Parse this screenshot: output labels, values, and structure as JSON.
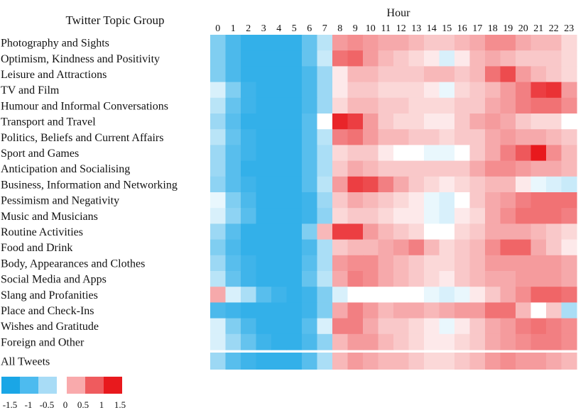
{
  "chart_data": {
    "type": "heatmap",
    "row_header": "Twitter Topic Group",
    "column_header": "Hour",
    "x": [
      "0",
      "1",
      "2",
      "3",
      "4",
      "5",
      "6",
      "7",
      "8",
      "9",
      "10",
      "11",
      "12",
      "13",
      "14",
      "15",
      "16",
      "17",
      "18",
      "19",
      "20",
      "21",
      "22",
      "23"
    ],
    "rows": [
      "Photography and Sights",
      "Optimism, Kindness and Positivity",
      "Leisure and Attractions",
      "TV and Film",
      "Humour and Informal Conversations",
      "Transport and Travel",
      "Politics, Beliefs and Current Affairs",
      "Sport and Games",
      "Anticipation and Socialising",
      "Business, Information and Networking",
      "Pessimism and Negativity",
      "Music and Musicians",
      "Routine Activities",
      "Food and Drink",
      "Body, Appearances and Clothes",
      "Social Media and Apps",
      "Slang and Profanities",
      "Place and Check-Ins",
      "Wishes and Gratitude",
      "Foreign and Other"
    ],
    "summary_row": "All Tweets",
    "values": [
      [
        -0.8,
        -1.2,
        -1.4,
        -1.4,
        -1.4,
        -1.4,
        -1.0,
        -0.4,
        0.6,
        0.7,
        0.6,
        0.5,
        0.5,
        0.4,
        0.3,
        0.3,
        0.4,
        0.5,
        0.7,
        0.7,
        0.5,
        0.4,
        0.4,
        0.2
      ],
      [
        -0.8,
        -1.2,
        -1.4,
        -1.4,
        -1.4,
        -1.4,
        -1.0,
        -0.3,
        0.9,
        1.0,
        0.6,
        0.4,
        0.3,
        0.2,
        0.1,
        -0.2,
        0.1,
        0.4,
        0.5,
        0.4,
        0.3,
        0.3,
        0.3,
        0.2
      ],
      [
        -0.8,
        -1.2,
        -1.4,
        -1.4,
        -1.4,
        -1.4,
        -1.2,
        -0.6,
        0.1,
        0.4,
        0.4,
        0.3,
        0.3,
        0.3,
        0.4,
        0.4,
        0.3,
        0.4,
        0.9,
        1.2,
        0.6,
        0.4,
        0.3,
        0.2
      ],
      [
        -0.2,
        -0.8,
        -1.3,
        -1.4,
        -1.4,
        -1.4,
        -1.2,
        -0.6,
        0.1,
        0.3,
        0.3,
        0.2,
        0.2,
        0.2,
        0.1,
        -0.1,
        0.2,
        0.3,
        0.4,
        0.6,
        0.8,
        1.3,
        1.4,
        0.6
      ],
      [
        -0.4,
        -1.0,
        -1.3,
        -1.4,
        -1.4,
        -1.4,
        -1.2,
        -0.6,
        0.2,
        0.4,
        0.4,
        0.3,
        0.3,
        0.2,
        0.2,
        0.2,
        0.3,
        0.3,
        0.5,
        0.6,
        0.8,
        0.9,
        0.9,
        0.7
      ],
      [
        -0.6,
        -1.1,
        -1.4,
        -1.4,
        -1.4,
        -1.4,
        -1.1,
        0.0,
        1.5,
        1.3,
        0.6,
        0.3,
        0.2,
        0.2,
        0.1,
        0.1,
        0.3,
        0.5,
        0.6,
        0.5,
        0.3,
        0.2,
        0.2,
        0.0
      ],
      [
        -0.4,
        -1.0,
        -1.3,
        -1.4,
        -1.4,
        -1.4,
        -1.1,
        -0.4,
        0.8,
        0.9,
        0.6,
        0.4,
        0.4,
        0.3,
        0.3,
        0.2,
        0.3,
        0.3,
        0.5,
        0.6,
        0.5,
        0.5,
        0.4,
        0.3
      ],
      [
        -0.6,
        -1.1,
        -1.3,
        -1.4,
        -1.4,
        -1.4,
        -1.1,
        -0.5,
        0.2,
        0.3,
        0.3,
        0.1,
        0.0,
        0.0,
        -0.1,
        -0.1,
        0.0,
        0.3,
        0.5,
        0.8,
        1.1,
        1.6,
        0.7,
        0.4
      ],
      [
        -0.6,
        -1.1,
        -1.4,
        -1.4,
        -1.4,
        -1.4,
        -1.1,
        -0.5,
        0.3,
        0.5,
        0.4,
        0.3,
        0.3,
        0.3,
        0.3,
        0.3,
        0.3,
        0.5,
        0.7,
        0.7,
        0.6,
        0.5,
        0.5,
        0.4
      ],
      [
        -0.7,
        -1.1,
        -1.3,
        -1.4,
        -1.4,
        -1.4,
        -1.1,
        -0.4,
        0.6,
        1.3,
        1.2,
        0.8,
        0.5,
        0.3,
        0.2,
        0.1,
        0.2,
        0.3,
        0.4,
        0.4,
        0.1,
        -0.1,
        -0.2,
        -0.3
      ],
      [
        -0.1,
        -0.8,
        -1.2,
        -1.4,
        -1.4,
        -1.4,
        -1.3,
        -0.6,
        0.3,
        0.5,
        0.4,
        0.3,
        0.2,
        0.1,
        -0.1,
        -0.2,
        0.0,
        0.3,
        0.5,
        0.6,
        0.8,
        0.9,
        0.9,
        0.9
      ],
      [
        -0.2,
        -0.7,
        -1.1,
        -1.4,
        -1.4,
        -1.4,
        -1.3,
        -0.7,
        0.2,
        0.3,
        0.3,
        0.2,
        0.1,
        0.1,
        -0.1,
        -0.2,
        0.1,
        0.2,
        0.5,
        0.7,
        0.9,
        0.9,
        0.9,
        0.8
      ],
      [
        -0.6,
        -1.1,
        -1.4,
        -1.4,
        -1.4,
        -1.4,
        -0.8,
        0.4,
        1.3,
        1.3,
        0.6,
        0.4,
        0.3,
        0.2,
        0.0,
        0.0,
        0.2,
        0.3,
        0.5,
        0.5,
        0.5,
        0.4,
        0.3,
        0.2
      ],
      [
        -0.8,
        -1.2,
        -1.4,
        -1.4,
        -1.4,
        -1.4,
        -1.2,
        -0.5,
        0.3,
        0.4,
        0.4,
        0.5,
        0.6,
        0.8,
        0.4,
        0.2,
        0.3,
        0.4,
        0.7,
        1.0,
        1.0,
        0.5,
        0.3,
        0.1
      ],
      [
        -0.6,
        -1.1,
        -1.3,
        -1.4,
        -1.4,
        -1.4,
        -1.1,
        -0.5,
        0.6,
        0.7,
        0.7,
        0.5,
        0.4,
        0.3,
        0.2,
        0.2,
        0.3,
        0.4,
        0.6,
        0.6,
        0.6,
        0.6,
        0.6,
        0.5
      ],
      [
        -0.4,
        -1.0,
        -1.3,
        -1.4,
        -1.4,
        -1.4,
        -1.0,
        -0.4,
        0.5,
        0.8,
        0.7,
        0.5,
        0.4,
        0.3,
        0.2,
        0.1,
        0.3,
        0.4,
        0.5,
        0.5,
        0.6,
        0.6,
        0.6,
        0.5
      ],
      [
        0.5,
        -0.2,
        -0.5,
        -1.1,
        -1.3,
        -1.4,
        -1.3,
        -0.8,
        -0.2,
        0.0,
        0.0,
        0.0,
        0.0,
        0.0,
        -0.1,
        -0.2,
        -0.1,
        0.1,
        0.3,
        0.5,
        0.7,
        1.0,
        1.0,
        0.9
      ],
      [
        -1.2,
        -1.3,
        -1.4,
        -1.4,
        -1.4,
        -1.4,
        -1.3,
        -0.8,
        0.5,
        0.8,
        0.6,
        0.4,
        0.5,
        0.5,
        0.4,
        0.5,
        0.6,
        0.6,
        0.9,
        0.9,
        0.4,
        0.0,
        0.3,
        -0.5
      ],
      [
        -0.2,
        -0.8,
        -1.2,
        -1.4,
        -1.4,
        -1.4,
        -1.1,
        -0.2,
        0.8,
        0.8,
        0.5,
        0.3,
        0.3,
        0.2,
        0.1,
        -0.1,
        0.1,
        0.3,
        0.5,
        0.6,
        0.8,
        0.9,
        0.8,
        0.7
      ],
      [
        -0.2,
        -0.6,
        -1.0,
        -1.3,
        -1.4,
        -1.4,
        -1.2,
        -0.7,
        0.4,
        0.6,
        0.6,
        0.4,
        0.3,
        0.2,
        0.1,
        0.1,
        0.2,
        0.3,
        0.5,
        0.6,
        0.7,
        0.8,
        0.8,
        0.7
      ]
    ],
    "summary_values": [
      -0.6,
      -1.1,
      -1.3,
      -1.4,
      -1.4,
      -1.4,
      -1.1,
      -0.5,
      0.4,
      0.6,
      0.5,
      0.4,
      0.4,
      0.3,
      0.2,
      0.2,
      0.3,
      0.4,
      0.6,
      0.7,
      0.6,
      0.6,
      0.5,
      0.4
    ],
    "legend": {
      "colors": [
        "#1aa6e6",
        "#4dbbef",
        "#a8dcf6",
        "#f9aaac",
        "#ef5b5e",
        "#e8191d"
      ],
      "labels": [
        "-1.5",
        "-1",
        "-0.5",
        "0",
        "0.5",
        "1",
        "1.5"
      ]
    },
    "color_scale": {
      "min": -1.6,
      "max": 1.6,
      "negative": "#1aa6e6",
      "neutral": "#ffffff",
      "positive": "#e8191d"
    }
  }
}
